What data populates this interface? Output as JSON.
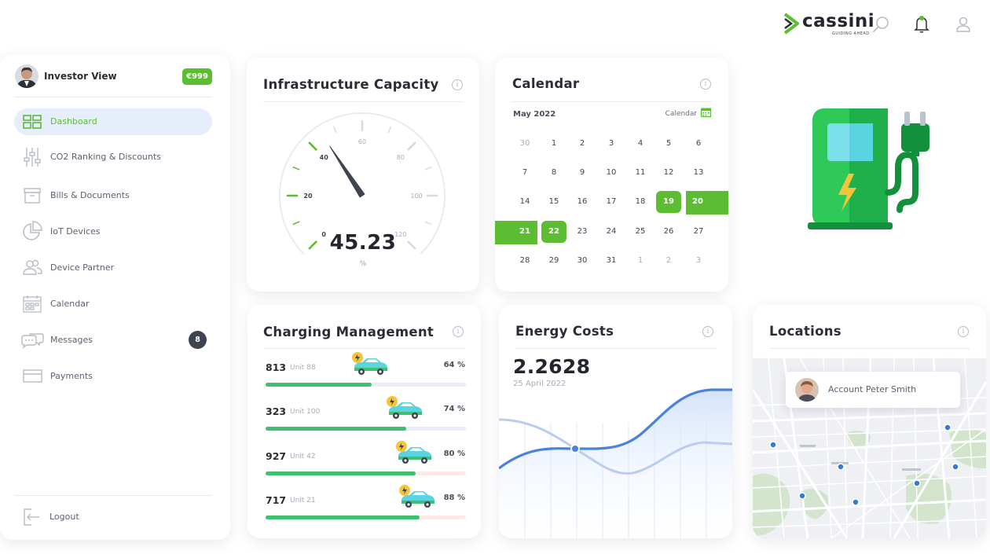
{
  "brand": {
    "name": "cassini",
    "tagline": "GUIDING AHEAD"
  },
  "icons": {
    "search": "search-icon",
    "notifications": "bell-icon",
    "account": "user-icon"
  },
  "colors": {
    "accent": "#5cbd33",
    "progress": "#3fbf70",
    "active_nav_bg": "#e6eefc",
    "line_main": "#4a80e0",
    "line_secondary": "#b9cdf0"
  },
  "sidebar": {
    "user": {
      "name": "Investor View",
      "badge": "€999"
    },
    "items": [
      {
        "label": "Dashboard",
        "icon": "dashboard-icon",
        "active": true
      },
      {
        "label": "CO2 Ranking & Discounts",
        "icon": "sliders-icon"
      },
      {
        "label": "Bills & Documents",
        "icon": "archive-box-icon"
      },
      {
        "label": "IoT Devices",
        "icon": "pie-chart-icon"
      },
      {
        "label": "Device Partner",
        "icon": "people-icon"
      },
      {
        "label": "Calendar",
        "icon": "calendar-grid-icon"
      },
      {
        "label": "Messages",
        "icon": "chat-bubbles-icon",
        "count": "8"
      },
      {
        "label": "Payments",
        "icon": "credit-card-icon"
      }
    ],
    "logout": "Logout"
  },
  "capacity": {
    "title": "Infrastructure Capacity",
    "value": "45.23",
    "unit": "%",
    "ticks": [
      "0",
      "20",
      "40",
      "60",
      "80",
      "100",
      "120"
    ],
    "needle_value": 45.23,
    "scale_max": 120
  },
  "calendar": {
    "title": "Calendar",
    "month": "May 2022",
    "link": "Calendar",
    "weeks": [
      [
        "30",
        "1",
        "2",
        "3",
        "4",
        "5",
        "6"
      ],
      [
        "7",
        "8",
        "9",
        "10",
        "11",
        "12",
        "13"
      ],
      [
        "14",
        "15",
        "16",
        "17",
        "18",
        "19",
        "20"
      ],
      [
        "21",
        "22",
        "23",
        "24",
        "25",
        "26",
        "27"
      ],
      [
        "28",
        "29",
        "30",
        "31",
        "1",
        "2",
        "3"
      ]
    ],
    "selected": [
      "19",
      "20",
      "21",
      "22"
    ]
  },
  "charging": {
    "title": "Charging Management",
    "rows": [
      {
        "value": "813",
        "unit": "Unit 88",
        "percent": "64 %",
        "fill": 0.53
      },
      {
        "value": "323",
        "unit": "Unit 100",
        "percent": "74 %",
        "fill": 0.7
      },
      {
        "value": "927",
        "unit": "Unit 42",
        "percent": "80 %",
        "fill": 0.75
      },
      {
        "value": "717",
        "unit": "Unit 21",
        "percent": "88 %",
        "fill": 0.77
      }
    ]
  },
  "energy": {
    "title": "Energy Costs",
    "value": "2.2628",
    "date": "25 April 2022"
  },
  "locations": {
    "title": "Locations",
    "account": "Account Peter Smith"
  }
}
